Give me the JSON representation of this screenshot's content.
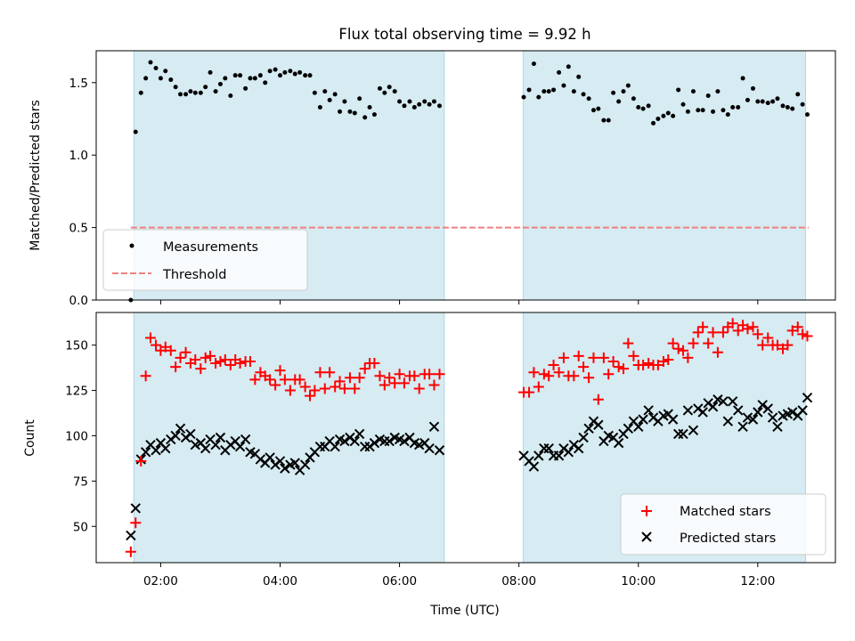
{
  "chart_data": [
    {
      "type": "scatter",
      "title": "Flux total observing time = 9.92 h",
      "xlabel": "",
      "ylabel": "Matched/Predicted stars",
      "ylim": [
        0,
        1.72
      ],
      "yticks": [
        "0.0",
        "0.5",
        "1.0",
        "1.5"
      ],
      "xlim_hours": [
        0.92,
        13.3
      ],
      "grid": false,
      "legend_position": "lower-left",
      "shaded_spans_hours": [
        [
          1.55,
          6.75
        ],
        [
          8.07,
          12.8
        ]
      ],
      "threshold": {
        "name": "Threshold",
        "value": 0.5,
        "color": "#f08080"
      },
      "series": [
        {
          "name": "Measurements",
          "color": "#000000",
          "marker": "dot",
          "x": [
            1.5,
            1.58,
            1.67,
            1.75,
            1.83,
            1.92,
            2.0,
            2.08,
            2.17,
            2.25,
            2.33,
            2.42,
            2.5,
            2.58,
            2.67,
            2.75,
            2.83,
            2.92,
            3.0,
            3.08,
            3.17,
            3.25,
            3.33,
            3.42,
            3.5,
            3.58,
            3.67,
            3.75,
            3.83,
            3.92,
            4.0,
            4.08,
            4.17,
            4.25,
            4.33,
            4.42,
            4.5,
            4.58,
            4.67,
            4.75,
            4.83,
            4.92,
            5.0,
            5.08,
            5.17,
            5.25,
            5.33,
            5.42,
            5.5,
            5.58,
            5.67,
            5.75,
            5.83,
            5.92,
            6.0,
            6.08,
            6.17,
            6.25,
            6.33,
            6.42,
            6.5,
            6.58,
            6.67,
            8.08,
            8.17,
            8.25,
            8.33,
            8.42,
            8.5,
            8.58,
            8.67,
            8.75,
            8.83,
            8.92,
            9.0,
            9.08,
            9.17,
            9.25,
            9.33,
            9.42,
            9.5,
            9.58,
            9.67,
            9.75,
            9.83,
            9.92,
            10.0,
            10.08,
            10.17,
            10.25,
            10.33,
            10.42,
            10.5,
            10.58,
            10.67,
            10.75,
            10.83,
            10.92,
            11.0,
            11.08,
            11.17,
            11.25,
            11.33,
            11.42,
            11.5,
            11.58,
            11.67,
            11.75,
            11.83,
            11.92,
            12.0,
            12.08,
            12.17,
            12.25,
            12.33,
            12.42,
            12.5,
            12.58,
            12.67,
            12.75,
            12.83
          ],
          "values": [
            0.0,
            1.16,
            1.43,
            1.53,
            1.64,
            1.6,
            1.53,
            1.58,
            1.52,
            1.47,
            1.42,
            1.42,
            1.44,
            1.43,
            1.43,
            1.47,
            1.57,
            1.44,
            1.49,
            1.53,
            1.41,
            1.55,
            1.55,
            1.46,
            1.53,
            1.53,
            1.55,
            1.5,
            1.58,
            1.59,
            1.55,
            1.57,
            1.58,
            1.56,
            1.57,
            1.55,
            1.55,
            1.43,
            1.33,
            1.44,
            1.38,
            1.42,
            1.3,
            1.37,
            1.3,
            1.29,
            1.39,
            1.26,
            1.33,
            1.28,
            1.46,
            1.43,
            1.47,
            1.44,
            1.37,
            1.34,
            1.37,
            1.33,
            1.35,
            1.37,
            1.35,
            1.37,
            1.34,
            1.4,
            1.45,
            1.63,
            1.4,
            1.44,
            1.44,
            1.45,
            1.57,
            1.48,
            1.61,
            1.44,
            1.54,
            1.42,
            1.39,
            1.31,
            1.32,
            1.24,
            1.24,
            1.43,
            1.37,
            1.44,
            1.48,
            1.39,
            1.33,
            1.32,
            1.34,
            1.22,
            1.25,
            1.27,
            1.29,
            1.27,
            1.45,
            1.35,
            1.3,
            1.44,
            1.31,
            1.31,
            1.41,
            1.3,
            1.44,
            1.31,
            1.28,
            1.33,
            1.33,
            1.53,
            1.38,
            1.46,
            1.37,
            1.37,
            1.36,
            1.37,
            1.39,
            1.34,
            1.33,
            1.32,
            1.42,
            1.35,
            1.28
          ]
        }
      ]
    },
    {
      "type": "scatter",
      "title": "",
      "xlabel": "Time (UTC)",
      "ylabel": "Count",
      "ylim": [
        30,
        168
      ],
      "yticks": [
        "50",
        "75",
        "100",
        "125",
        "150"
      ],
      "xlim_hours": [
        0.92,
        13.3
      ],
      "xticks": [
        {
          "hour": 2,
          "label": "02:00"
        },
        {
          "hour": 4,
          "label": "04:00"
        },
        {
          "hour": 6,
          "label": "06:00"
        },
        {
          "hour": 8,
          "label": "08:00"
        },
        {
          "hour": 10,
          "label": "10:00"
        },
        {
          "hour": 12,
          "label": "12:00"
        }
      ],
      "grid": false,
      "legend_position": "lower-right",
      "shaded_spans_hours": [
        [
          1.55,
          6.75
        ],
        [
          8.07,
          12.8
        ]
      ],
      "series": [
        {
          "name": "Matched stars",
          "color": "#ff0000",
          "marker": "plus",
          "x": [
            1.5,
            1.58,
            1.67,
            1.75,
            1.83,
            1.92,
            2.0,
            2.08,
            2.17,
            2.25,
            2.33,
            2.42,
            2.5,
            2.58,
            2.67,
            2.75,
            2.83,
            2.92,
            3.0,
            3.08,
            3.17,
            3.25,
            3.33,
            3.42,
            3.5,
            3.58,
            3.67,
            3.75,
            3.83,
            3.92,
            4.0,
            4.08,
            4.17,
            4.25,
            4.33,
            4.42,
            4.5,
            4.58,
            4.67,
            4.75,
            4.83,
            4.92,
            5.0,
            5.08,
            5.17,
            5.25,
            5.33,
            5.42,
            5.5,
            5.58,
            5.67,
            5.75,
            5.83,
            5.92,
            6.0,
            6.08,
            6.17,
            6.25,
            6.33,
            6.42,
            6.5,
            6.58,
            6.67,
            8.08,
            8.17,
            8.25,
            8.33,
            8.42,
            8.5,
            8.58,
            8.67,
            8.75,
            8.83,
            8.92,
            9.0,
            9.08,
            9.17,
            9.25,
            9.33,
            9.42,
            9.5,
            9.58,
            9.67,
            9.75,
            9.83,
            9.92,
            10.0,
            10.08,
            10.17,
            10.25,
            10.33,
            10.42,
            10.5,
            10.58,
            10.67,
            10.75,
            10.83,
            10.92,
            11.0,
            11.08,
            11.17,
            11.25,
            11.33,
            11.42,
            11.5,
            11.58,
            11.67,
            11.75,
            11.83,
            11.92,
            12.0,
            12.08,
            12.17,
            12.25,
            12.33,
            12.42,
            12.5,
            12.58,
            12.67,
            12.75,
            12.83
          ],
          "values": [
            36,
            52,
            86,
            133,
            154,
            150,
            147,
            149,
            147,
            138,
            143,
            146,
            140,
            142,
            137,
            143,
            144,
            140,
            141,
            142,
            139,
            142,
            140,
            141,
            141,
            131,
            135,
            133,
            131,
            128,
            136,
            131,
            125,
            131,
            131,
            127,
            122,
            125,
            135,
            126,
            135,
            127,
            130,
            126,
            132,
            126,
            132,
            137,
            140,
            140,
            133,
            128,
            132,
            129,
            134,
            129,
            133,
            133,
            126,
            134,
            134,
            128,
            134,
            124,
            124,
            135,
            127,
            134,
            133,
            139,
            135,
            143,
            133,
            133,
            144,
            138,
            132,
            143,
            120,
            143,
            134,
            141,
            138,
            137,
            151,
            144,
            139,
            139,
            140,
            139,
            139,
            141,
            142,
            151,
            148,
            147,
            143,
            151,
            157,
            160,
            151,
            157,
            146,
            157,
            160,
            162,
            158,
            161,
            159,
            160,
            156,
            150,
            154,
            150,
            150,
            148,
            150,
            158,
            160,
            156,
            155
          ]
        },
        {
          "name": "Predicted stars",
          "color": "#000000",
          "marker": "x",
          "x": [
            1.5,
            1.58,
            1.67,
            1.75,
            1.83,
            1.92,
            2.0,
            2.08,
            2.17,
            2.25,
            2.33,
            2.42,
            2.5,
            2.58,
            2.67,
            2.75,
            2.83,
            2.92,
            3.0,
            3.08,
            3.17,
            3.25,
            3.33,
            3.42,
            3.5,
            3.58,
            3.67,
            3.75,
            3.83,
            3.92,
            4.0,
            4.08,
            4.17,
            4.25,
            4.33,
            4.42,
            4.5,
            4.58,
            4.67,
            4.75,
            4.83,
            4.92,
            5.0,
            5.08,
            5.17,
            5.25,
            5.33,
            5.42,
            5.5,
            5.58,
            5.67,
            5.75,
            5.83,
            5.92,
            6.0,
            6.08,
            6.17,
            6.25,
            6.33,
            6.42,
            6.5,
            6.58,
            6.67,
            8.08,
            8.17,
            8.25,
            8.33,
            8.42,
            8.5,
            8.58,
            8.67,
            8.75,
            8.83,
            8.92,
            9.0,
            9.08,
            9.17,
            9.25,
            9.33,
            9.42,
            9.5,
            9.58,
            9.67,
            9.75,
            9.83,
            9.92,
            10.0,
            10.08,
            10.17,
            10.25,
            10.33,
            10.42,
            10.5,
            10.58,
            10.67,
            10.75,
            10.83,
            10.92,
            11.0,
            11.08,
            11.17,
            11.25,
            11.33,
            11.42,
            11.5,
            11.58,
            11.67,
            11.75,
            11.83,
            11.92,
            12.0,
            12.08,
            12.17,
            12.25,
            12.33,
            12.42,
            12.5,
            12.58,
            12.67,
            12.75,
            12.83
          ],
          "values": [
            45,
            60,
            87,
            91,
            95,
            92,
            96,
            93,
            98,
            100,
            104,
            99,
            101,
            95,
            96,
            93,
            98,
            95,
            99,
            92,
            95,
            97,
            94,
            98,
            91,
            90,
            87,
            85,
            88,
            84,
            86,
            82,
            84,
            85,
            81,
            84,
            88,
            91,
            94,
            94,
            97,
            94,
            98,
            97,
            99,
            97,
            101,
            94,
            94,
            96,
            98,
            97,
            97,
            99,
            98,
            97,
            99,
            96,
            95,
            96,
            93,
            105,
            92,
            89,
            86,
            83,
            89,
            93,
            93,
            89,
            89,
            93,
            91,
            95,
            93,
            99,
            104,
            108,
            106,
            97,
            100,
            99,
            96,
            101,
            104,
            108,
            105,
            109,
            114,
            110,
            108,
            111,
            112,
            109,
            101,
            101,
            114,
            103,
            115,
            113,
            118,
            116,
            120,
            119,
            108,
            119,
            114,
            105,
            110,
            109,
            113,
            117,
            115,
            110,
            105,
            111,
            112,
            113,
            111,
            114,
            121
          ]
        }
      ]
    }
  ]
}
